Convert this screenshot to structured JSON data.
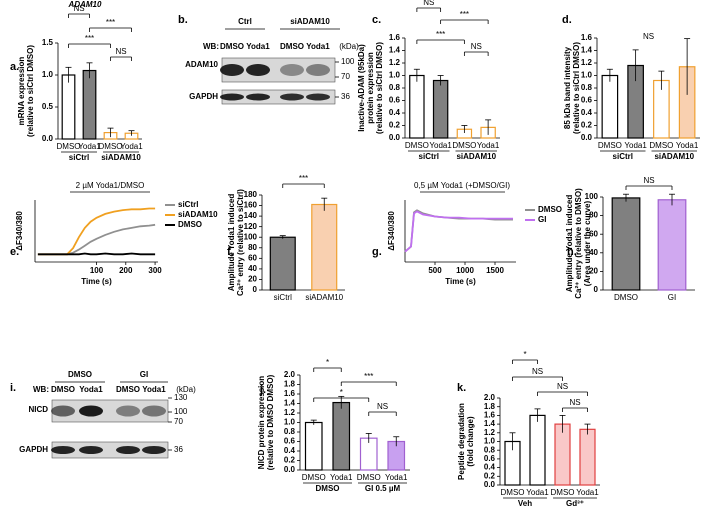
{
  "chart_data": [
    {
      "type": "bar",
      "label": "a.",
      "title": "ADAM10",
      "ylabel": [
        "mRNA expression",
        "(relative to siCtrl DMSO)"
      ],
      "categories": [
        "DMSO",
        "Yoda1",
        "DMSO",
        "Yoda1"
      ],
      "groups": [
        "siCtrl",
        "siADAM10"
      ],
      "values": [
        1.0,
        1.07,
        0.1,
        0.09
      ],
      "errors": [
        0.12,
        0.12,
        0.07,
        0.04
      ],
      "fills": [
        "#ffffff",
        "#808080",
        "#ffffff",
        "#ffffff"
      ],
      "edges": [
        "#000000",
        "#000000",
        "#f0a030",
        "#f0a030"
      ],
      "ylim": [
        0,
        1.5
      ],
      "yticks": [
        {
          "value": 0,
          "label": "0.0"
        },
        0.5,
        {
          "value": 1,
          "label": "1.0"
        },
        1.5
      ],
      "annotations": [
        "NS",
        "***",
        "***",
        "NS"
      ]
    },
    {
      "type": "bar",
      "label": "c.",
      "ylabel": [
        "Inactive-ADAM (95kDa)",
        "protein expression",
        "(relative to siCtrl DMSO)"
      ],
      "categories": [
        "DMSO",
        "Yoda1",
        "DMSO",
        "Yoda1"
      ],
      "groups": [
        "siCtrl",
        "siADAM10"
      ],
      "values": [
        1.0,
        0.92,
        0.14,
        0.17
      ],
      "errors": [
        0.1,
        0.08,
        0.06,
        0.12
      ],
      "fills": [
        "#ffffff",
        "#808080",
        "#ffffff",
        "#ffffff"
      ],
      "edges": [
        "#000000",
        "#000000",
        "#f0a030",
        "#f0a030"
      ],
      "ylim": [
        0,
        1.6
      ],
      "yticks": [
        {
          "value": 0,
          "label": "0.0"
        },
        0.2,
        0.4,
        0.6,
        0.8,
        {
          "value": 1,
          "label": "1.0"
        },
        1.2,
        1.4,
        1.6
      ],
      "annotations": [
        "NS",
        "***",
        "***",
        "NS"
      ]
    },
    {
      "type": "bar",
      "label": "d.",
      "ylabel": [
        "85 kDa band intensity",
        "(relative to siCtrl DMSO)"
      ],
      "categories": [
        "DMSO",
        "Yoda1",
        "DMSO",
        "Yoda1"
      ],
      "groups": [
        "siCtrl",
        "siADAM10"
      ],
      "values": [
        1.0,
        1.16,
        0.92,
        1.14
      ],
      "errors": [
        0.1,
        0.25,
        0.15,
        0.45
      ],
      "fills": [
        "#ffffff",
        "#808080",
        "#ffffff",
        "#f9d0b0"
      ],
      "edges": [
        "#000000",
        "#000000",
        "#f0a030",
        "#f0a030"
      ],
      "ylim": [
        0,
        1.6
      ],
      "yticks": [
        {
          "value": 0,
          "label": "0.0"
        },
        0.2,
        0.4,
        0.6,
        0.8,
        {
          "value": 1,
          "label": "1.0"
        },
        1.2,
        1.4,
        1.6
      ],
      "annotations": [
        "NS"
      ]
    },
    {
      "type": "line",
      "label": "e.",
      "ylabel": [
        "ΔF340/380"
      ],
      "xlabel": "Time (s)",
      "x": [
        -100,
        -50,
        0,
        20,
        40,
        60,
        80,
        100,
        130,
        160,
        190,
        220,
        250,
        280,
        300
      ],
      "series": [
        {
          "name": "siCtrl",
          "color": "#909090",
          "values": [
            0,
            0,
            0,
            0.02,
            0.06,
            0.11,
            0.16,
            0.2,
            0.25,
            0.29,
            0.32,
            0.34,
            0.36,
            0.37,
            0.38
          ]
        },
        {
          "name": "siADAM10",
          "color": "#f0a020",
          "values": [
            0,
            0,
            0,
            0.08,
            0.22,
            0.34,
            0.42,
            0.47,
            0.52,
            0.55,
            0.57,
            0.58,
            0.58,
            0.59,
            0.59
          ]
        },
        {
          "name": "DMSO",
          "color": "#000000",
          "values": [
            0,
            0,
            0,
            0,
            0,
            0.01,
            0,
            0,
            0.01,
            0,
            0,
            0.01,
            0,
            0,
            0
          ]
        }
      ],
      "xlim": [
        -110,
        310
      ],
      "xticks": [
        100,
        200,
        300
      ],
      "ylim": [
        -0.1,
        0.7
      ],
      "annotations": [
        "2 µM Yoda1/DMSO"
      ]
    },
    {
      "type": "bar",
      "label": "f.",
      "ylabel": [
        "Amplitude Yoda1 induced",
        "Ca²⁺ entry (relative to siCtrl)"
      ],
      "categories": [
        "siCtrl",
        "siADAM10"
      ],
      "values": [
        100,
        162
      ],
      "errors": [
        3,
        12
      ],
      "fills": [
        "#808080",
        "#f9d0b0"
      ],
      "edges": [
        "#000000",
        "#f0a030"
      ],
      "ylim": [
        0,
        180
      ],
      "yticks": [
        0,
        20,
        40,
        60,
        80,
        100,
        120,
        140,
        160,
        180
      ],
      "annotations": [
        "***"
      ]
    },
    {
      "type": "line",
      "label": "g.",
      "ylabel": [
        "ΔF340/380"
      ],
      "xlabel": "Time (s)",
      "x": [
        0,
        100,
        150,
        200,
        300,
        500,
        700,
        900,
        1100,
        1300,
        1500,
        1700,
        1800
      ],
      "series": [
        {
          "name": "DMSO",
          "color": "#909090",
          "values": [
            0,
            0.05,
            0.38,
            0.4,
            0.37,
            0.34,
            0.33,
            0.32,
            0.32,
            0.32,
            0.31,
            0.31,
            0.31
          ]
        },
        {
          "name": "GI",
          "color": "#c070f0",
          "values": [
            0,
            0.05,
            0.37,
            0.39,
            0.36,
            0.34,
            0.33,
            0.33,
            0.32,
            0.32,
            0.32,
            0.32,
            0.32
          ]
        }
      ],
      "xlim": [
        0,
        1850
      ],
      "xticks": [
        500,
        1000,
        1500
      ],
      "ylim": [
        -0.1,
        0.5
      ],
      "annotations": [
        "0,5 µM Yoda1 (+DMSO/GI)"
      ]
    },
    {
      "type": "bar",
      "label": "h.",
      "ylabel": [
        "Amplitude Yoda1 induced",
        "Ca²⁺ entry (relative to DMSO)",
        "(Area under the curve)"
      ],
      "categories": [
        "DMSO",
        "GI"
      ],
      "values": [
        99,
        97
      ],
      "errors": [
        4,
        6
      ],
      "fills": [
        "#808080",
        "#d0a8f0"
      ],
      "edges": [
        "#000000",
        "#a060d0"
      ],
      "ylim": [
        0,
        100
      ],
      "yticks": [
        0,
        20,
        40,
        60,
        80,
        100
      ],
      "annotations": [
        "NS"
      ]
    },
    {
      "type": "bar",
      "label": "j.",
      "ylabel": [
        "NICD protein expression",
        "(relative to DMSO DMSO)"
      ],
      "categories": [
        "DMSO",
        "Yoda1",
        "DMSO",
        "Yoda1"
      ],
      "groups": [
        "DMSO",
        "GI 0.5 µM"
      ],
      "values": [
        1.0,
        1.42,
        0.67,
        0.6
      ],
      "errors": [
        0.05,
        0.13,
        0.1,
        0.1
      ],
      "fills": [
        "#ffffff",
        "#808080",
        "#ffffff",
        "#c8a0f0"
      ],
      "edges": [
        "#000000",
        "#000000",
        "#a060d0",
        "#a060d0"
      ],
      "ylim": [
        0,
        2
      ],
      "yticks": [
        {
          "value": 0,
          "label": "0.0"
        },
        0.2,
        0.4,
        0.6,
        0.8,
        {
          "value": 1,
          "label": "1.0"
        },
        1.2,
        1.4,
        1.6,
        1.8,
        {
          "value": 2,
          "label": "2.0"
        }
      ],
      "annotations": [
        "*",
        "***",
        "*",
        "NS"
      ]
    },
    {
      "type": "bar",
      "label": "k.",
      "ylabel": [
        "Peptide degradation",
        "(fold change)"
      ],
      "categories": [
        "DMSO",
        "Yoda1",
        "DMSO",
        "Yoda1"
      ],
      "groups": [
        "Veh",
        "Gd³⁺"
      ],
      "values": [
        1.0,
        1.6,
        1.4,
        1.28
      ],
      "errors": [
        0.2,
        0.15,
        0.2,
        0.12
      ],
      "fills": [
        "#ffffff",
        "#ffffff",
        "#f9c8c8",
        "#f9c8c8"
      ],
      "edges": [
        "#000000",
        "#000000",
        "#e04040",
        "#e04040"
      ],
      "ylim": [
        0,
        2
      ],
      "yticks": [
        {
          "value": 0,
          "label": "0.0"
        },
        0.2,
        0.4,
        0.6,
        0.8,
        {
          "value": 1,
          "label": "1.0"
        },
        1.2,
        1.4,
        1.6,
        1.8,
        {
          "value": 2,
          "label": "2.0"
        }
      ],
      "annotations": [
        "*",
        "NS",
        "NS",
        "NS"
      ]
    }
  ],
  "blots": [
    {
      "label": "b.",
      "groups": [
        "Ctrl",
        "siADAM10"
      ],
      "wb": "WB:",
      "lanes": [
        "DMSO",
        "Yoda1",
        "DMSO",
        "Yoda1"
      ],
      "unit": "(kDa)",
      "rows": [
        {
          "name": "ADAM10",
          "markers": [
            "100",
            "70"
          ]
        },
        {
          "name": "GAPDH",
          "markers": [
            "36"
          ]
        }
      ]
    },
    {
      "label": "i.",
      "groups": [
        "DMSO",
        "GI"
      ],
      "wb": "WB:",
      "lanes": [
        "DMSO",
        "Yoda1",
        "DMSO",
        "Yoda1"
      ],
      "unit": "(kDa)",
      "rows": [
        {
          "name": "NICD",
          "markers": [
            "130",
            "100",
            "70"
          ]
        },
        {
          "name": "GAPDH",
          "markers": [
            "36"
          ]
        }
      ]
    }
  ]
}
